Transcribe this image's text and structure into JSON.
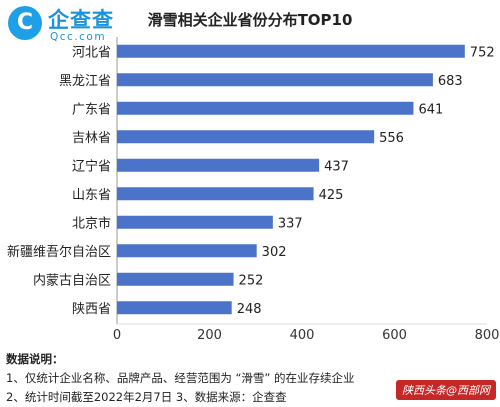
{
  "logo": {
    "mark": "C",
    "cn": "企查查",
    "en": "Qcc.com"
  },
  "notes": {
    "heading": "数据说明：",
    "line1": "1、仅统计企业名称、品牌产品、经营范围为 “滑雪” 的在业存续企业",
    "line2": "2、统计时间截至2022年2月7日  3、数据来源：企查查"
  },
  "watermark": "陕西头条@西部网",
  "colors": {
    "bar": "#4a73c9",
    "axis": "#999999",
    "logo": "#1c93d8",
    "watermark_bg": "#c62828"
  },
  "chart_data": {
    "type": "bar",
    "orientation": "horizontal",
    "title": "滑雪相关企业省份分布TOP10",
    "categories": [
      "河北省",
      "黑龙江省",
      "广东省",
      "吉林省",
      "辽宁省",
      "山东省",
      "北京市",
      "新疆维吾尔自治区",
      "内蒙古自治区",
      "陕西省"
    ],
    "values": [
      752,
      683,
      641,
      556,
      437,
      425,
      337,
      302,
      252,
      248
    ],
    "xlim": [
      0,
      800
    ],
    "xticks": [
      0,
      200,
      400,
      600,
      800
    ],
    "grid": false,
    "legend": "none"
  }
}
